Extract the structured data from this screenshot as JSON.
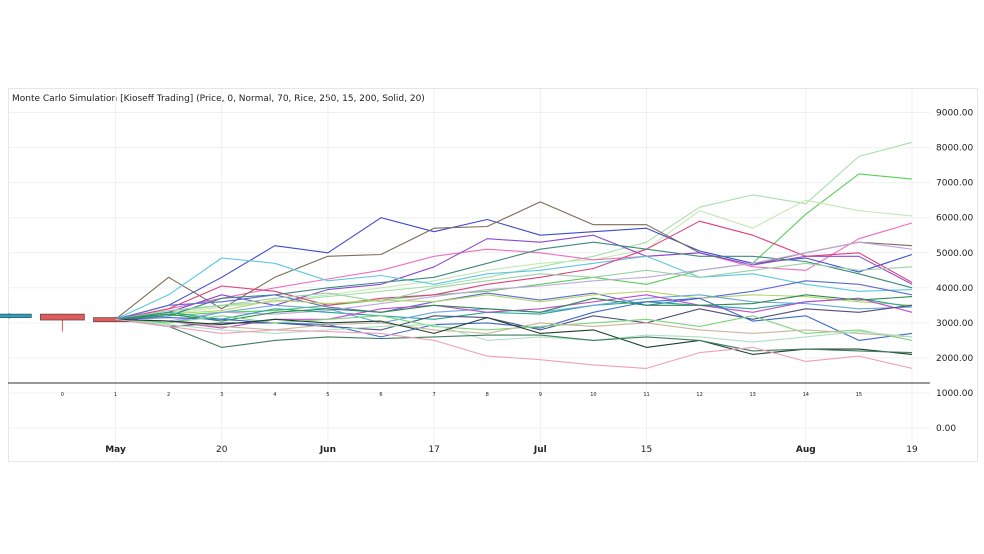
{
  "chart_data": {
    "type": "line",
    "title": "Monte Carlo Simulation [Kioseff Trading] (Price, 0, Normal, 70, Rice, 250, 15, 200, Solid, 20)",
    "xlabel": "",
    "ylabel": "",
    "ylim": [
      0,
      9000
    ],
    "grid": true,
    "legend": "none",
    "y_ticks": [
      "9000.00",
      "8000.00",
      "7000.00",
      "6000.00",
      "5000.00",
      "4000.00",
      "3000.00",
      "2000.00",
      "1000.00",
      "0.00"
    ],
    "step_labels": [
      "0",
      "1",
      "2",
      "3",
      "4",
      "5",
      "6",
      "7",
      "8",
      "9",
      "10",
      "11",
      "12",
      "13",
      "14",
      "15"
    ],
    "x_labels": [
      {
        "text": "May",
        "bold": true,
        "step": 1
      },
      {
        "text": "20",
        "bold": false,
        "step": 3
      },
      {
        "text": "Jun",
        "bold": true,
        "step": 5
      },
      {
        "text": "17",
        "bold": false,
        "step": 7
      },
      {
        "text": "Jul",
        "bold": true,
        "step": 9
      },
      {
        "text": "15",
        "bold": false,
        "step": 11
      },
      {
        "text": "Aug",
        "bold": true,
        "step": 14
      },
      {
        "text": "19",
        "bold": false,
        "step": 16
      }
    ],
    "candles": [
      {
        "step": -1,
        "open": 3150,
        "close": 3250,
        "high": 3280,
        "low": 3120,
        "color": "#26a3c0"
      },
      {
        "step": 0,
        "open": 3250,
        "close": 3080,
        "high": 3260,
        "low": 2750,
        "color": "#e05c5c"
      },
      {
        "step": 1,
        "open": 3150,
        "close": 3030,
        "high": 3160,
        "low": 3020,
        "color": "#e05c5c"
      }
    ],
    "series": [
      {
        "color": "#a6e0a6",
        "values": [
          3100,
          3300,
          3500,
          3600,
          3750,
          3900,
          4050,
          4300,
          4600,
          4900,
          5300,
          6300,
          6650,
          6400,
          7750,
          8150
        ]
      },
      {
        "color": "#5ccd5c",
        "values": [
          3100,
          3200,
          3300,
          3350,
          3500,
          3650,
          3800,
          3900,
          4100,
          4300,
          4100,
          4500,
          4700,
          6100,
          7250,
          7100
        ]
      },
      {
        "color": "#c4e8b4",
        "values": [
          3100,
          3250,
          3450,
          3600,
          3800,
          4000,
          4200,
          4500,
          4700,
          4800,
          5100,
          6200,
          5700,
          6500,
          6200,
          6050
        ]
      },
      {
        "color": "#f06cc0",
        "values": [
          3100,
          3400,
          3700,
          4000,
          4250,
          4500,
          4900,
          5100,
          5000,
          4800,
          4900,
          5000,
          4600,
          4500,
          5400,
          5850
        ]
      },
      {
        "color": "#3c4bd1",
        "values": [
          3100,
          3500,
          4300,
          5200,
          5000,
          6000,
          5600,
          5950,
          5500,
          5600,
          5700,
          5050,
          4700,
          4850,
          4450,
          4950
        ]
      },
      {
        "color": "#7d6b55",
        "values": [
          3100,
          4300,
          3400,
          4300,
          4900,
          4950,
          5700,
          5750,
          6450,
          5800,
          5800,
          5000,
          4650,
          5000,
          5300,
          5200
        ]
      },
      {
        "color": "#8a4bd1",
        "values": [
          3100,
          3300,
          3800,
          3500,
          3950,
          4100,
          4600,
          5400,
          5300,
          5500,
          4900,
          5000,
          4650,
          4900,
          4900,
          4100
        ]
      },
      {
        "color": "#5cc8e0",
        "values": [
          3100,
          3800,
          4850,
          4700,
          4200,
          4350,
          4100,
          4400,
          4500,
          4700,
          4900,
          4300,
          4400,
          4100,
          3900,
          3950
        ]
      },
      {
        "color": "#e0407a",
        "values": [
          3100,
          3400,
          4050,
          3900,
          3500,
          3700,
          3800,
          4100,
          4300,
          4550,
          5100,
          5900,
          5500,
          4900,
          5000,
          4150
        ]
      },
      {
        "color": "#3f8a7c",
        "values": [
          3100,
          3200,
          3700,
          3800,
          4000,
          4150,
          4300,
          4700,
          5100,
          5300,
          5100,
          4900,
          4900,
          4750,
          4400,
          4000
        ]
      },
      {
        "color": "#5c6bd1",
        "values": [
          3100,
          3500,
          3600,
          3800,
          3450,
          3300,
          3600,
          3850,
          3650,
          3850,
          3500,
          3700,
          3900,
          4200,
          4100,
          3800
        ]
      },
      {
        "color": "#c0a6e0",
        "values": [
          3100,
          3050,
          3300,
          3250,
          3350,
          3550,
          3750,
          3950,
          4050,
          4200,
          4300,
          4500,
          4700,
          5000,
          5300,
          5100
        ]
      },
      {
        "color": "#9cd1a6",
        "values": [
          3100,
          3350,
          3500,
          3700,
          3850,
          3600,
          4000,
          4200,
          4400,
          4300,
          4500,
          4300,
          4500,
          4700,
          4500,
          4600
        ]
      },
      {
        "color": "#b4d66b",
        "values": [
          3100,
          3250,
          3350,
          3650,
          3550,
          3650,
          3600,
          3800,
          3600,
          3800,
          3900,
          3700,
          3800,
          3750,
          3600,
          3500
        ]
      },
      {
        "color": "#26a69a",
        "values": [
          3100,
          3300,
          3100,
          3400,
          3300,
          3200,
          3100,
          3300,
          3250,
          3500,
          3600,
          3500,
          3400,
          3600,
          3700,
          3450
        ]
      },
      {
        "color": "#6ca6e0",
        "values": [
          3100,
          3000,
          3300,
          3500,
          3400,
          3000,
          3300,
          3400,
          3300,
          3500,
          3700,
          3800,
          3600,
          3550,
          3400,
          3450
        ]
      },
      {
        "color": "#c14bd1",
        "values": [
          3100,
          3050,
          2850,
          3100,
          3100,
          3400,
          3500,
          3300,
          3400,
          3600,
          3800,
          3500,
          3300,
          3600,
          3700,
          3300
        ]
      },
      {
        "color": "#2d8b4f",
        "values": [
          3100,
          3250,
          3050,
          3300,
          3400,
          3300,
          3500,
          3400,
          3300,
          3700,
          3500,
          3500,
          3550,
          3800,
          3650,
          3750
        ]
      },
      {
        "color": "#4f4f7c",
        "values": [
          3100,
          2900,
          3000,
          3000,
          2900,
          2800,
          3200,
          3150,
          2800,
          3200,
          3000,
          3400,
          3100,
          3400,
          3300,
          3500
        ]
      },
      {
        "color": "#3c6bd1",
        "values": [
          3100,
          3150,
          3100,
          3000,
          2950,
          2600,
          2950,
          3000,
          2850,
          3300,
          3600,
          3700,
          3050,
          3200,
          2500,
          2700
        ]
      },
      {
        "color": "#7cd67c",
        "values": [
          3100,
          3000,
          3200,
          3000,
          3100,
          3200,
          2900,
          2800,
          2900,
          3000,
          3100,
          2900,
          3200,
          2700,
          2800,
          2500
        ]
      },
      {
        "color": "#c7b89c",
        "values": [
          3100,
          3050,
          2900,
          2800,
          2950,
          3000,
          2800,
          2700,
          3000,
          2900,
          3000,
          2800,
          2700,
          2800,
          2700,
          2600
        ]
      },
      {
        "color": "#aee0c0",
        "values": [
          3100,
          2950,
          2800,
          2700,
          2800,
          2900,
          2950,
          2500,
          2600,
          2500,
          2650,
          2600,
          2450,
          2600,
          2750,
          2600
        ]
      },
      {
        "color": "#1f3f2f",
        "values": [
          3100,
          3050,
          2950,
          3100,
          3000,
          3050,
          2700,
          3150,
          2700,
          2800,
          2300,
          2500,
          2100,
          2250,
          2250,
          2100
        ]
      },
      {
        "color": "#3f7f5f",
        "values": [
          3100,
          2900,
          2300,
          2500,
          2600,
          2550,
          2600,
          2650,
          2650,
          2500,
          2600,
          2500,
          2200,
          2250,
          2200,
          2150
        ]
      },
      {
        "color": "#f0a0b8",
        "values": [
          3100,
          2900,
          2700,
          2800,
          2750,
          2700,
          2500,
          2050,
          1950,
          1800,
          1700,
          2150,
          2300,
          1900,
          2050,
          1700
        ]
      }
    ]
  }
}
